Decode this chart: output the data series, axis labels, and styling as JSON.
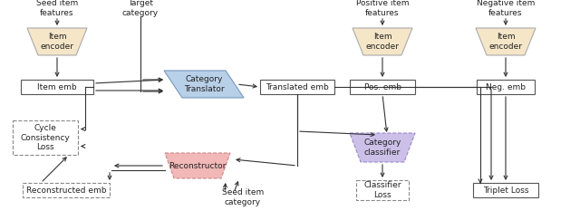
{
  "figsize": [
    6.4,
    2.43
  ],
  "dpi": 100,
  "bg_color": "#ffffff",
  "trapezoid_encoder_color": "#f5e6c8",
  "trapezoid_encoder_edge": "#aaaaaa",
  "category_translator_color": "#b8d0e8",
  "category_translator_edge": "#7799bb",
  "reconstructor_color": "#f2b8b8",
  "reconstructor_edge": "#cc8888",
  "category_classifier_color": "#ccc0e8",
  "category_classifier_edge": "#9988cc",
  "dashed_rect_edge": "#888888",
  "solid_rect_edge": "#555555",
  "text_color": "#222222",
  "arrow_color": "#333333",
  "labels": {
    "seed_item_features": "Seed item\nfeatures",
    "target_category": "Target\ncategory",
    "positive_item_features": "Positive item\nfeatures",
    "negative_item_features": "Negative item\nfeatures",
    "item_encoder": "Item\nencoder",
    "item_emb": "Item emb",
    "category_translator": "Category\nTranslator",
    "translated_emb": "Translated emb",
    "pos_emb": "Pos. emb",
    "neg_emb": "Neg. emb",
    "cycle_consistency_loss": "Cycle\nConsistency\nLoss",
    "reconstructed_emb": "Reconstructed emb",
    "reconstructor": "Reconstructor",
    "seed_item_category": "Seed item\ncategory",
    "category_classifier": "Category\nclassifier",
    "classifier_loss": "Classifier\nLoss",
    "triplet_loss": "Triplet Loss"
  }
}
